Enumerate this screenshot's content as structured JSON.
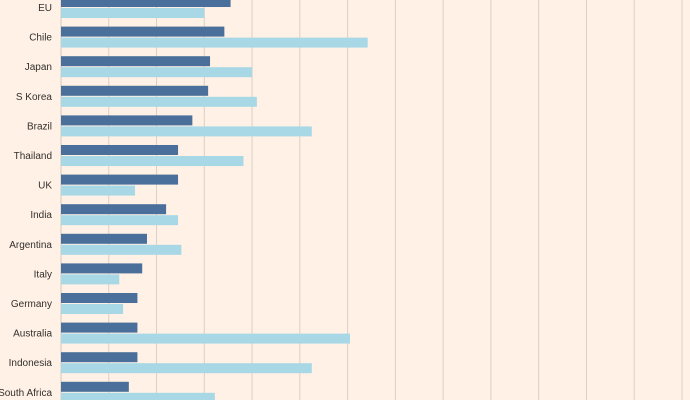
{
  "chart_data": {
    "type": "bar",
    "orientation": "horizontal",
    "categories": [
      "EU",
      "Chile",
      "Japan",
      "S Korea",
      "Brazil",
      "Thailand",
      "UK",
      "India",
      "Argentina",
      "Italy",
      "Germany",
      "Australia",
      "Indonesia",
      "South Africa"
    ],
    "series": [
      {
        "values": [
          35.5,
          34.2,
          31.2,
          30.8,
          27.5,
          24.5,
          24.5,
          22.0,
          18.0,
          17.0,
          16.0,
          16.0,
          16.0,
          14.2
        ]
      },
      {
        "values": [
          30.0,
          64.2,
          40.0,
          41.0,
          52.5,
          38.2,
          15.5,
          24.5,
          25.2,
          12.2,
          13.0,
          60.5,
          52.5,
          32.2
        ]
      }
    ],
    "xlim": [
      0,
      130
    ],
    "grid": true,
    "colors": {
      "series1": "#4A6F9B",
      "series2": "#A8D8E6",
      "grid": "#DCCFC4",
      "background": "#FFF1E5",
      "text": "#33302E"
    }
  }
}
